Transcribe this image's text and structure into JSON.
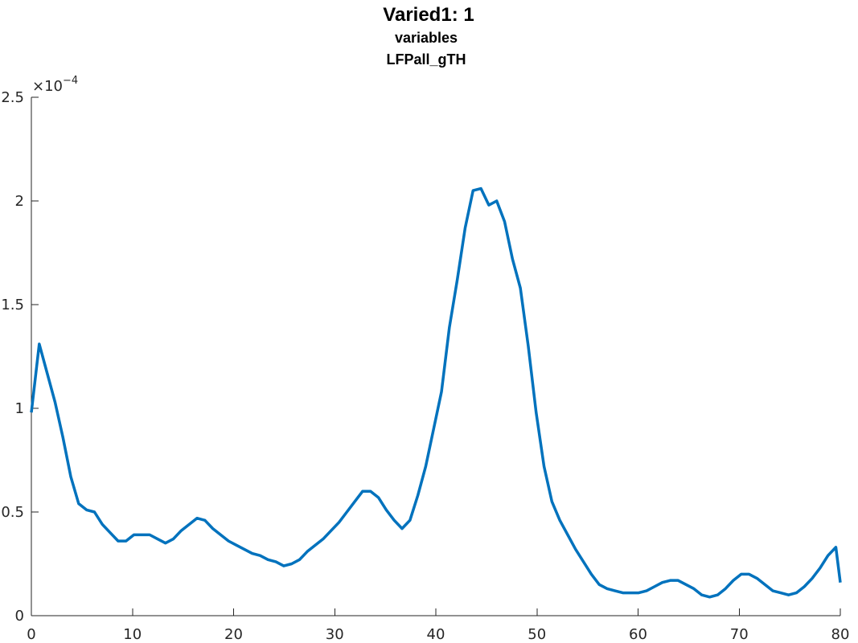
{
  "chart_data": {
    "type": "line",
    "title": "Varied1: 1",
    "subtitle_lines": [
      "variables",
      "LFPall_gTH"
    ],
    "xlabel": "",
    "ylabel": "",
    "xlim": [
      0,
      80
    ],
    "ylim": [
      0,
      2.5
    ],
    "y_exponent_label": "×10",
    "y_exponent_power": "−4",
    "x_ticks": [
      0,
      10,
      20,
      30,
      40,
      50,
      60,
      70,
      80
    ],
    "y_ticks": [
      0,
      0.5,
      1,
      1.5,
      2,
      2.5
    ],
    "x_tick_labels": [
      "0",
      "10",
      "20",
      "30",
      "40",
      "50",
      "60",
      "70",
      "80"
    ],
    "y_tick_labels": [
      "0",
      "0.5",
      "1",
      "1.5",
      "2",
      "2.5"
    ],
    "grid": false,
    "line_color": "#0072BD",
    "series": [
      {
        "x": [
          0,
          0.78,
          1.56,
          2.34,
          3.12,
          3.9,
          4.68,
          5.46,
          6.24,
          7.02,
          7.8,
          8.58,
          9.36,
          10.14,
          10.92,
          11.7,
          12.48,
          13.26,
          14.04,
          14.82,
          15.6,
          16.38,
          17.16,
          17.94,
          18.72,
          19.5,
          20.28,
          21.06,
          21.84,
          22.62,
          23.4,
          24.18,
          24.96,
          25.74,
          26.52,
          27.3,
          28.08,
          28.86,
          29.64,
          30.42,
          31.2,
          31.98,
          32.76,
          33.54,
          34.32,
          35.1,
          35.88,
          36.66,
          37.44,
          38.22,
          39,
          39.78,
          40.56,
          41.34,
          42.12,
          42.9,
          43.68,
          44.46,
          45.24,
          46.02,
          46.8,
          47.58,
          48.36,
          49.14,
          49.92,
          50.7,
          51.48,
          52.26,
          53.04,
          53.82,
          54.6,
          55.38,
          56.16,
          56.94,
          57.72,
          58.5,
          59.28,
          60.06,
          60.84,
          61.62,
          62.4,
          63.18,
          63.96,
          64.74,
          65.52,
          66.3,
          67.08,
          67.86,
          68.64,
          69.42,
          70.2,
          70.98,
          71.76,
          72.54,
          73.32,
          74.1,
          74.88,
          75.66,
          76.44,
          77.22,
          78,
          78.78,
          79.56,
          80
        ],
        "y": [
          0.98,
          1.31,
          1.17,
          1.03,
          0.86,
          0.67,
          0.54,
          0.51,
          0.5,
          0.44,
          0.4,
          0.36,
          0.36,
          0.39,
          0.39,
          0.39,
          0.37,
          0.35,
          0.37,
          0.41,
          0.44,
          0.47,
          0.46,
          0.42,
          0.39,
          0.36,
          0.34,
          0.32,
          0.3,
          0.29,
          0.27,
          0.26,
          0.24,
          0.25,
          0.27,
          0.31,
          0.34,
          0.37,
          0.41,
          0.45,
          0.5,
          0.55,
          0.6,
          0.6,
          0.57,
          0.51,
          0.46,
          0.42,
          0.46,
          0.58,
          0.72,
          0.9,
          1.08,
          1.39,
          1.62,
          1.87,
          2.05,
          2.06,
          1.98,
          2.0,
          1.9,
          1.72,
          1.58,
          1.3,
          0.98,
          0.72,
          0.55,
          0.46,
          0.39,
          0.32,
          0.26,
          0.2,
          0.15,
          0.13,
          0.12,
          0.11,
          0.11,
          0.11,
          0.12,
          0.14,
          0.16,
          0.17,
          0.17,
          0.15,
          0.13,
          0.1,
          0.09,
          0.1,
          0.13,
          0.17,
          0.2,
          0.2,
          0.18,
          0.15,
          0.12,
          0.11,
          0.1,
          0.11,
          0.14,
          0.18,
          0.23,
          0.29,
          0.33,
          0.16
        ]
      }
    ]
  }
}
